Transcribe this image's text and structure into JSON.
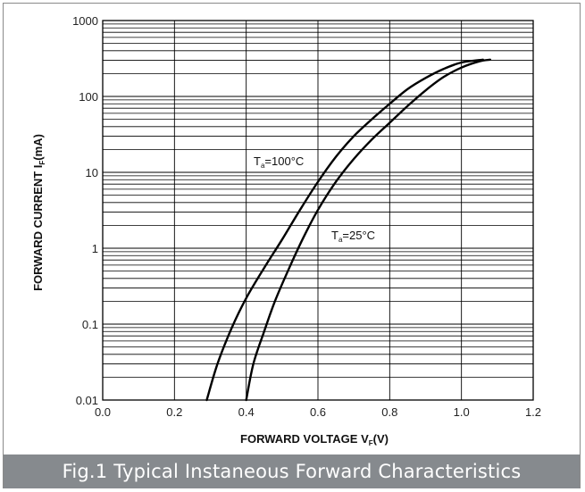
{
  "caption": "Fig.1 Typical Instaneous Forward Characteristics",
  "chart_data": {
    "type": "line",
    "title": "",
    "xlabel": {
      "main": "FORWARD VOLTAGE  V",
      "sub": "F",
      "unit": "(V)"
    },
    "ylabel": {
      "main": "FORWARD CURRENT  I",
      "sub": "F",
      "unit": "(mA)"
    },
    "xlim": [
      0.0,
      1.2
    ],
    "ylim": [
      0.01,
      1000
    ],
    "yscale": "log",
    "grid": true,
    "x_ticks": [
      "0.0",
      "0.2",
      "0.4",
      "0.6",
      "0.8",
      "1.0",
      "1.2"
    ],
    "y_ticks": [
      "0.01",
      "0.1",
      "1",
      "10",
      "100",
      "1000"
    ],
    "series": [
      {
        "name": "Ta=100°C",
        "label_main": "T",
        "label_sub": "a",
        "label_rest": "=100°C",
        "x": [
          0.29,
          0.32,
          0.36,
          0.4,
          0.45,
          0.5,
          0.55,
          0.6,
          0.65,
          0.7,
          0.75,
          0.8,
          0.85,
          0.9,
          0.95,
          1.0,
          1.06
        ],
        "y": [
          0.01,
          0.03,
          0.09,
          0.22,
          0.55,
          1.3,
          3.2,
          7.5,
          16,
          30,
          50,
          80,
          125,
          175,
          230,
          280,
          305
        ]
      },
      {
        "name": "Ta=25°C",
        "label_main": "T",
        "label_sub": "a",
        "label_rest": "=25°C",
        "x": [
          0.4,
          0.42,
          0.45,
          0.48,
          0.52,
          0.56,
          0.6,
          0.65,
          0.7,
          0.75,
          0.8,
          0.85,
          0.9,
          0.95,
          1.0,
          1.05,
          1.08
        ],
        "y": [
          0.01,
          0.03,
          0.08,
          0.2,
          0.55,
          1.4,
          3.2,
          7.5,
          15,
          27,
          45,
          75,
          120,
          180,
          240,
          290,
          305
        ]
      }
    ],
    "line_color": "#000000",
    "grid_color": "#000000"
  }
}
